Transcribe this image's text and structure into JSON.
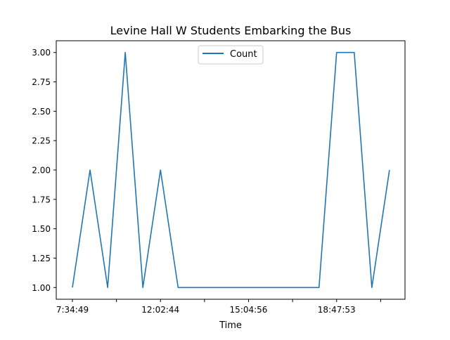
{
  "chart_data": {
    "type": "line",
    "title": "Levine Hall W Students Embarking the Bus",
    "xlabel": "Time",
    "ylabel": "",
    "x_tick_labels": [
      "7:34:49",
      "",
      "12:02:44",
      "",
      "15:04:56",
      "",
      "18:47:53",
      ""
    ],
    "y_ticks": [
      1.0,
      1.25,
      1.5,
      1.75,
      2.0,
      2.25,
      2.5,
      2.75,
      3.0
    ],
    "ylim": [
      0.9,
      3.1
    ],
    "grid": false,
    "legend": {
      "position": "top-center",
      "entries": [
        "Count"
      ]
    },
    "series": [
      {
        "name": "Count",
        "color": "#1f77b4",
        "values": [
          1,
          2,
          1,
          3,
          1,
          2,
          1,
          1,
          1,
          1,
          1,
          1,
          1,
          1,
          1,
          3,
          3,
          1,
          2
        ]
      }
    ]
  }
}
